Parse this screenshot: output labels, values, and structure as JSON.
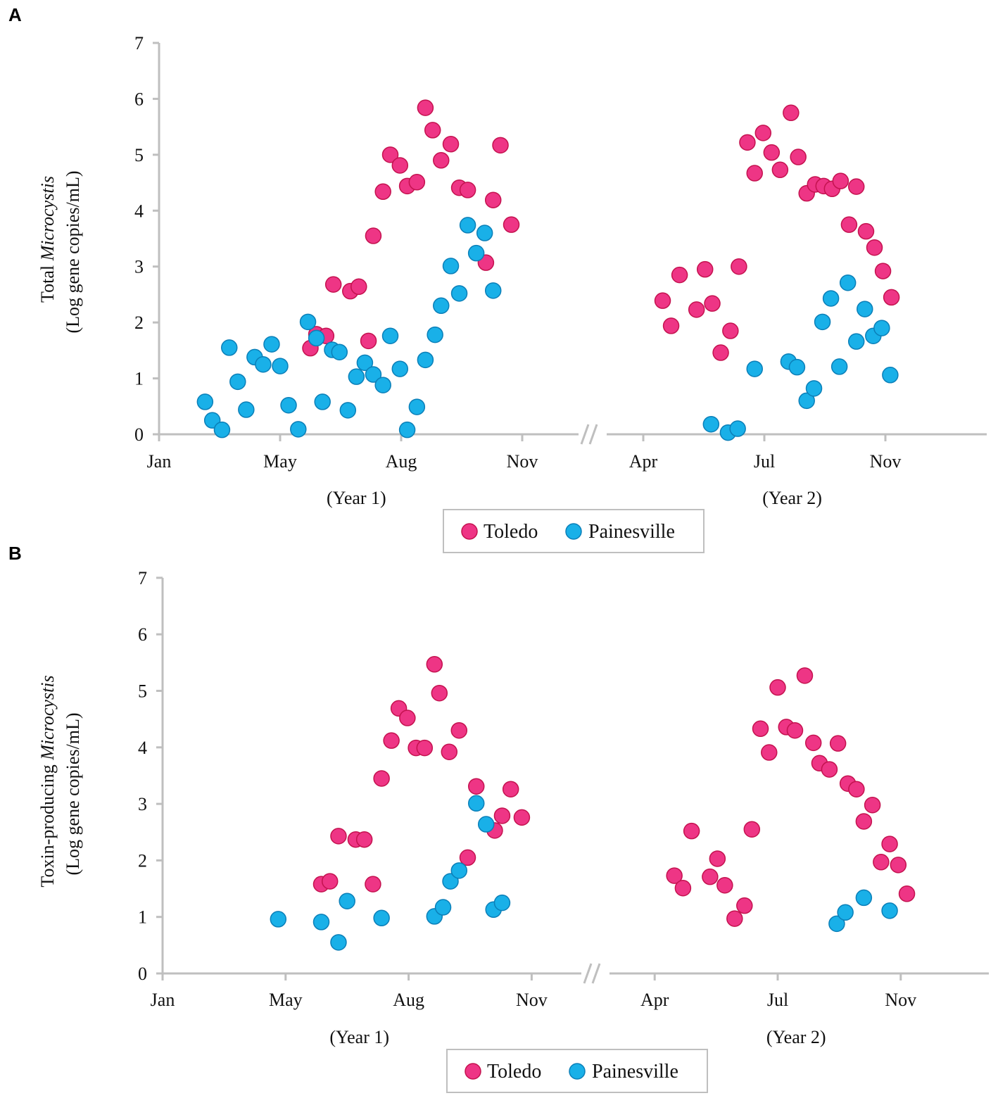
{
  "colors": {
    "toledo": "#ee3585",
    "toledo_edge": "#c4124f",
    "painesville": "#19b0e8",
    "painesville_edge": "#0b7fb8",
    "axis": "#bfbfbf"
  },
  "chart_data": [
    {
      "panel": "A",
      "type": "scatter",
      "ylabel_prefix": "Total ",
      "ylabel_italic": "Microcystis",
      "ylabel_line2": "(Log gene copies/mL)",
      "ylim": [
        0,
        7
      ],
      "yticks": [
        0,
        1,
        2,
        3,
        4,
        5,
        6,
        7
      ],
      "x_note": "x in tick-interval units: Jan=0, May=1, Aug=2, Nov=3 (Year 1); Apr=4, Jul=5, Nov=6 (Year 2); axis break between Year 1 and Year 2",
      "xlim": [
        0,
        6.83
      ],
      "xticks": [
        {
          "v": 0,
          "label": "Jan"
        },
        {
          "v": 1,
          "label": "May"
        },
        {
          "v": 2,
          "label": "Aug"
        },
        {
          "v": 3,
          "label": "Nov"
        },
        {
          "v": 4,
          "label": "Apr"
        },
        {
          "v": 5,
          "label": "Jul"
        },
        {
          "v": 6,
          "label": "Nov"
        }
      ],
      "year_labels": [
        {
          "v": 1.63,
          "label": "(Year 1)"
        },
        {
          "v": 5.23,
          "label": "(Year 2)"
        }
      ],
      "legend": [
        "Toledo",
        "Painesville"
      ],
      "series": [
        {
          "name": "Toledo",
          "points": [
            [
              1.25,
              1.54
            ],
            [
              1.3,
              1.79
            ],
            [
              1.38,
              1.76
            ],
            [
              1.44,
              2.68
            ],
            [
              1.58,
              2.56
            ],
            [
              1.65,
              2.64
            ],
            [
              1.73,
              1.67
            ],
            [
              1.77,
              3.55
            ],
            [
              1.85,
              4.34
            ],
            [
              1.91,
              5.0
            ],
            [
              1.99,
              4.81
            ],
            [
              2.05,
              4.44
            ],
            [
              2.13,
              4.51
            ],
            [
              2.2,
              5.84
            ],
            [
              2.26,
              5.44
            ],
            [
              2.33,
              4.9
            ],
            [
              2.41,
              5.19
            ],
            [
              2.48,
              4.41
            ],
            [
              2.55,
              4.37
            ],
            [
              2.7,
              3.07
            ],
            [
              2.76,
              4.19
            ],
            [
              2.82,
              5.17
            ],
            [
              2.91,
              3.75
            ],
            [
              4.16,
              2.39
            ],
            [
              4.23,
              1.94
            ],
            [
              4.3,
              2.85
            ],
            [
              4.44,
              2.23
            ],
            [
              4.51,
              2.95
            ],
            [
              4.57,
              2.34
            ],
            [
              4.64,
              1.46
            ],
            [
              4.72,
              1.85
            ],
            [
              4.79,
              3.0
            ],
            [
              4.86,
              5.22
            ],
            [
              4.92,
              4.67
            ],
            [
              4.99,
              5.39
            ],
            [
              5.06,
              5.04
            ],
            [
              5.13,
              4.73
            ],
            [
              5.22,
              5.75
            ],
            [
              5.28,
              4.96
            ],
            [
              5.35,
              4.31
            ],
            [
              5.42,
              4.47
            ],
            [
              5.49,
              4.44
            ],
            [
              5.56,
              4.39
            ],
            [
              5.63,
              4.53
            ],
            [
              5.7,
              3.75
            ],
            [
              5.76,
              4.43
            ],
            [
              5.84,
              3.63
            ],
            [
              5.91,
              3.34
            ],
            [
              5.98,
              2.92
            ],
            [
              6.05,
              2.45
            ]
          ]
        },
        {
          "name": "Painesville",
          "points": [
            [
              0.38,
              0.58
            ],
            [
              0.44,
              0.25
            ],
            [
              0.52,
              0.08
            ],
            [
              0.58,
              1.55
            ],
            [
              0.65,
              0.94
            ],
            [
              0.72,
              0.44
            ],
            [
              0.79,
              1.38
            ],
            [
              0.86,
              1.25
            ],
            [
              0.93,
              1.61
            ],
            [
              1.0,
              1.22
            ],
            [
              1.07,
              0.52
            ],
            [
              1.15,
              0.09
            ],
            [
              1.23,
              2.01
            ],
            [
              1.3,
              1.72
            ],
            [
              1.35,
              0.58
            ],
            [
              1.43,
              1.51
            ],
            [
              1.49,
              1.47
            ],
            [
              1.56,
              0.43
            ],
            [
              1.63,
              1.03
            ],
            [
              1.7,
              1.28
            ],
            [
              1.77,
              1.07
            ],
            [
              1.85,
              0.88
            ],
            [
              1.91,
              1.76
            ],
            [
              1.99,
              1.17
            ],
            [
              2.05,
              0.08
            ],
            [
              2.13,
              0.49
            ],
            [
              2.2,
              1.33
            ],
            [
              2.28,
              1.78
            ],
            [
              2.33,
              2.3
            ],
            [
              2.41,
              3.01
            ],
            [
              2.48,
              2.52
            ],
            [
              2.55,
              3.74
            ],
            [
              2.62,
              3.24
            ],
            [
              2.69,
              3.6
            ],
            [
              2.76,
              2.57
            ],
            [
              4.56,
              0.18
            ],
            [
              4.7,
              0.03
            ],
            [
              4.78,
              0.1
            ],
            [
              4.92,
              1.17
            ],
            [
              5.2,
              1.3
            ],
            [
              5.27,
              1.2
            ],
            [
              5.35,
              0.6
            ],
            [
              5.41,
              0.82
            ],
            [
              5.48,
              2.01
            ],
            [
              5.55,
              2.43
            ],
            [
              5.62,
              1.21
            ],
            [
              5.69,
              2.71
            ],
            [
              5.76,
              1.66
            ],
            [
              5.83,
              2.24
            ],
            [
              5.9,
              1.76
            ],
            [
              5.97,
              1.9
            ],
            [
              6.04,
              1.06
            ]
          ]
        }
      ]
    },
    {
      "panel": "B",
      "type": "scatter",
      "ylabel_prefix": "Toxin-producing ",
      "ylabel_italic": "Microcystis",
      "ylabel_line2": "(Log gene copies/mL)",
      "ylim": [
        0,
        7
      ],
      "yticks": [
        0,
        1,
        2,
        3,
        4,
        5,
        6,
        7
      ],
      "x_note": "x in tick-interval units: Jan=0, May=1, Aug=2, Nov=3 (Year 1); Apr=4, Jul=5, Nov=6 (Year 2); axis break between Year 1 and Year 2",
      "xlim": [
        0,
        6.73
      ],
      "xticks": [
        {
          "v": 0,
          "label": "Jan"
        },
        {
          "v": 1,
          "label": "May"
        },
        {
          "v": 2,
          "label": "Aug"
        },
        {
          "v": 3,
          "label": "Nov"
        },
        {
          "v": 4,
          "label": "Apr"
        },
        {
          "v": 5,
          "label": "Jul"
        },
        {
          "v": 6,
          "label": "Nov"
        }
      ],
      "year_labels": [
        {
          "v": 1.6,
          "label": "(Year 1)"
        },
        {
          "v": 5.15,
          "label": "(Year 2)"
        }
      ],
      "legend": [
        "Toledo",
        "Painesville"
      ],
      "series": [
        {
          "name": "Toledo",
          "points": [
            [
              1.29,
              1.58
            ],
            [
              1.36,
              1.63
            ],
            [
              1.43,
              2.43
            ],
            [
              1.57,
              2.37
            ],
            [
              1.64,
              2.37
            ],
            [
              1.71,
              1.58
            ],
            [
              1.78,
              3.45
            ],
            [
              1.86,
              4.12
            ],
            [
              1.92,
              4.69
            ],
            [
              1.99,
              4.52
            ],
            [
              2.06,
              3.99
            ],
            [
              2.13,
              3.99
            ],
            [
              2.21,
              5.47
            ],
            [
              2.25,
              4.96
            ],
            [
              2.33,
              3.92
            ],
            [
              2.41,
              4.3
            ],
            [
              2.48,
              2.05
            ],
            [
              2.55,
              3.31
            ],
            [
              2.7,
              2.53
            ],
            [
              2.76,
              2.79
            ],
            [
              2.83,
              3.26
            ],
            [
              2.92,
              2.76
            ],
            [
              4.16,
              1.73
            ],
            [
              4.23,
              1.51
            ],
            [
              4.3,
              2.52
            ],
            [
              4.45,
              1.71
            ],
            [
              4.51,
              2.03
            ],
            [
              4.57,
              1.56
            ],
            [
              4.65,
              0.97
            ],
            [
              4.73,
              1.2
            ],
            [
              4.79,
              2.55
            ],
            [
              4.86,
              4.33
            ],
            [
              4.93,
              3.91
            ],
            [
              5.0,
              5.06
            ],
            [
              5.07,
              4.36
            ],
            [
              5.14,
              4.3
            ],
            [
              5.22,
              5.27
            ],
            [
              5.29,
              4.08
            ],
            [
              5.34,
              3.72
            ],
            [
              5.42,
              3.61
            ],
            [
              5.49,
              4.07
            ],
            [
              5.57,
              3.36
            ],
            [
              5.64,
              3.26
            ],
            [
              5.7,
              2.69
            ],
            [
              5.77,
              2.98
            ],
            [
              5.84,
              1.97
            ],
            [
              5.91,
              2.29
            ],
            [
              5.98,
              1.92
            ],
            [
              6.05,
              1.41
            ]
          ]
        },
        {
          "name": "Painesville",
          "points": [
            [
              0.94,
              0.96
            ],
            [
              1.29,
              0.91
            ],
            [
              1.43,
              0.55
            ],
            [
              1.5,
              1.28
            ],
            [
              1.78,
              0.98
            ],
            [
              2.21,
              1.01
            ],
            [
              2.28,
              1.17
            ],
            [
              2.34,
              1.63
            ],
            [
              2.41,
              1.82
            ],
            [
              2.55,
              3.01
            ],
            [
              2.63,
              2.64
            ],
            [
              2.69,
              1.13
            ],
            [
              2.76,
              1.25
            ],
            [
              5.48,
              0.88
            ],
            [
              5.55,
              1.08
            ],
            [
              5.7,
              1.34
            ],
            [
              5.91,
              1.11
            ]
          ]
        }
      ]
    }
  ]
}
